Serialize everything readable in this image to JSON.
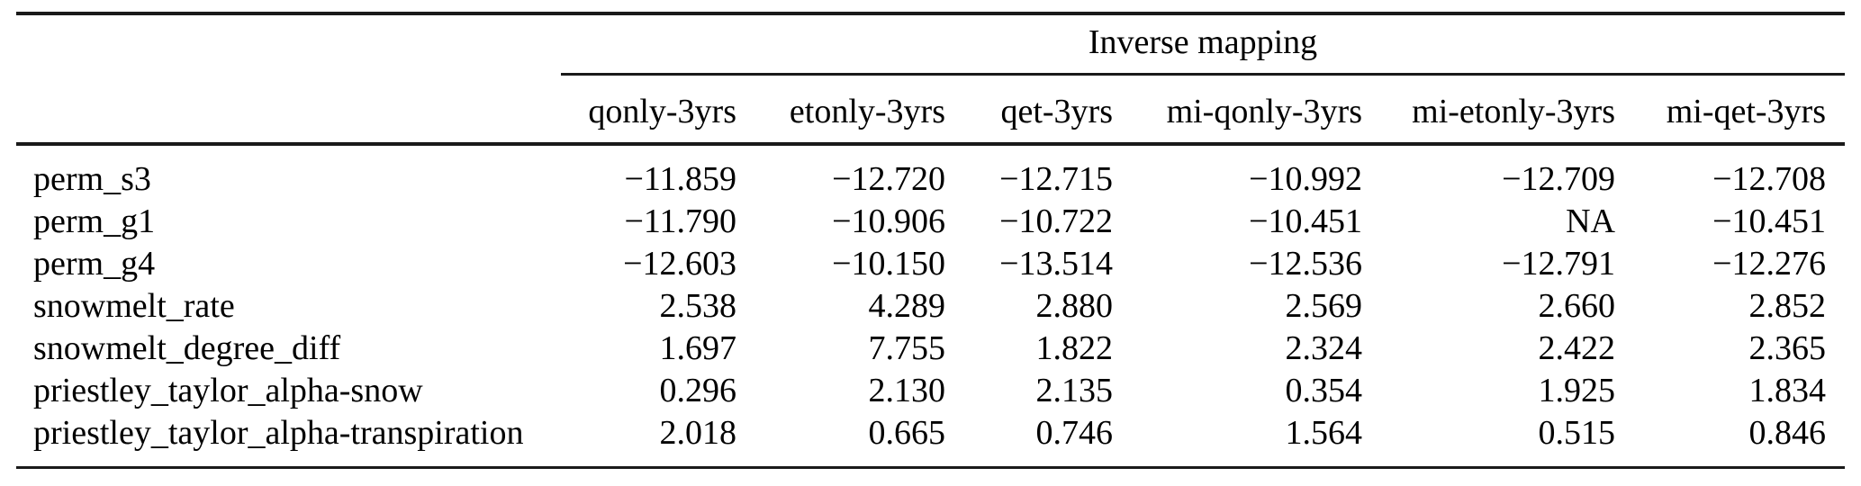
{
  "table": {
    "spanner": "Inverse mapping",
    "columns": [
      "qonly-3yrs",
      "etonly-3yrs",
      "qet-3yrs",
      "mi-qonly-3yrs",
      "mi-etonly-3yrs",
      "mi-qet-3yrs"
    ],
    "rows": [
      {
        "label": "perm_s3",
        "values": [
          "−11.859",
          "−12.720",
          "−12.715",
          "−10.992",
          "−12.709",
          "−12.708"
        ]
      },
      {
        "label": "perm_g1",
        "values": [
          "−11.790",
          "−10.906",
          "−10.722",
          "−10.451",
          "NA",
          "−10.451"
        ]
      },
      {
        "label": "perm_g4",
        "values": [
          "−12.603",
          "−10.150",
          "−13.514",
          "−12.536",
          "−12.791",
          "−12.276"
        ]
      },
      {
        "label": "snowmelt_rate",
        "values": [
          "2.538",
          "4.289",
          "2.880",
          "2.569",
          "2.660",
          "2.852"
        ]
      },
      {
        "label": "snowmelt_degree_diff",
        "values": [
          "1.697",
          "7.755",
          "1.822",
          "2.324",
          "2.422",
          "2.365"
        ]
      },
      {
        "label": "priestley_taylor_alpha-snow",
        "values": [
          "0.296",
          "2.130",
          "2.135",
          "0.354",
          "1.925",
          "1.834"
        ]
      },
      {
        "label": "priestley_taylor_alpha-transpiration",
        "values": [
          "2.018",
          "0.665",
          "0.746",
          "1.564",
          "0.515",
          "0.846"
        ]
      }
    ],
    "colors": {
      "text": "#000000",
      "rule": "#1a1a1a",
      "background": "#ffffff"
    }
  }
}
